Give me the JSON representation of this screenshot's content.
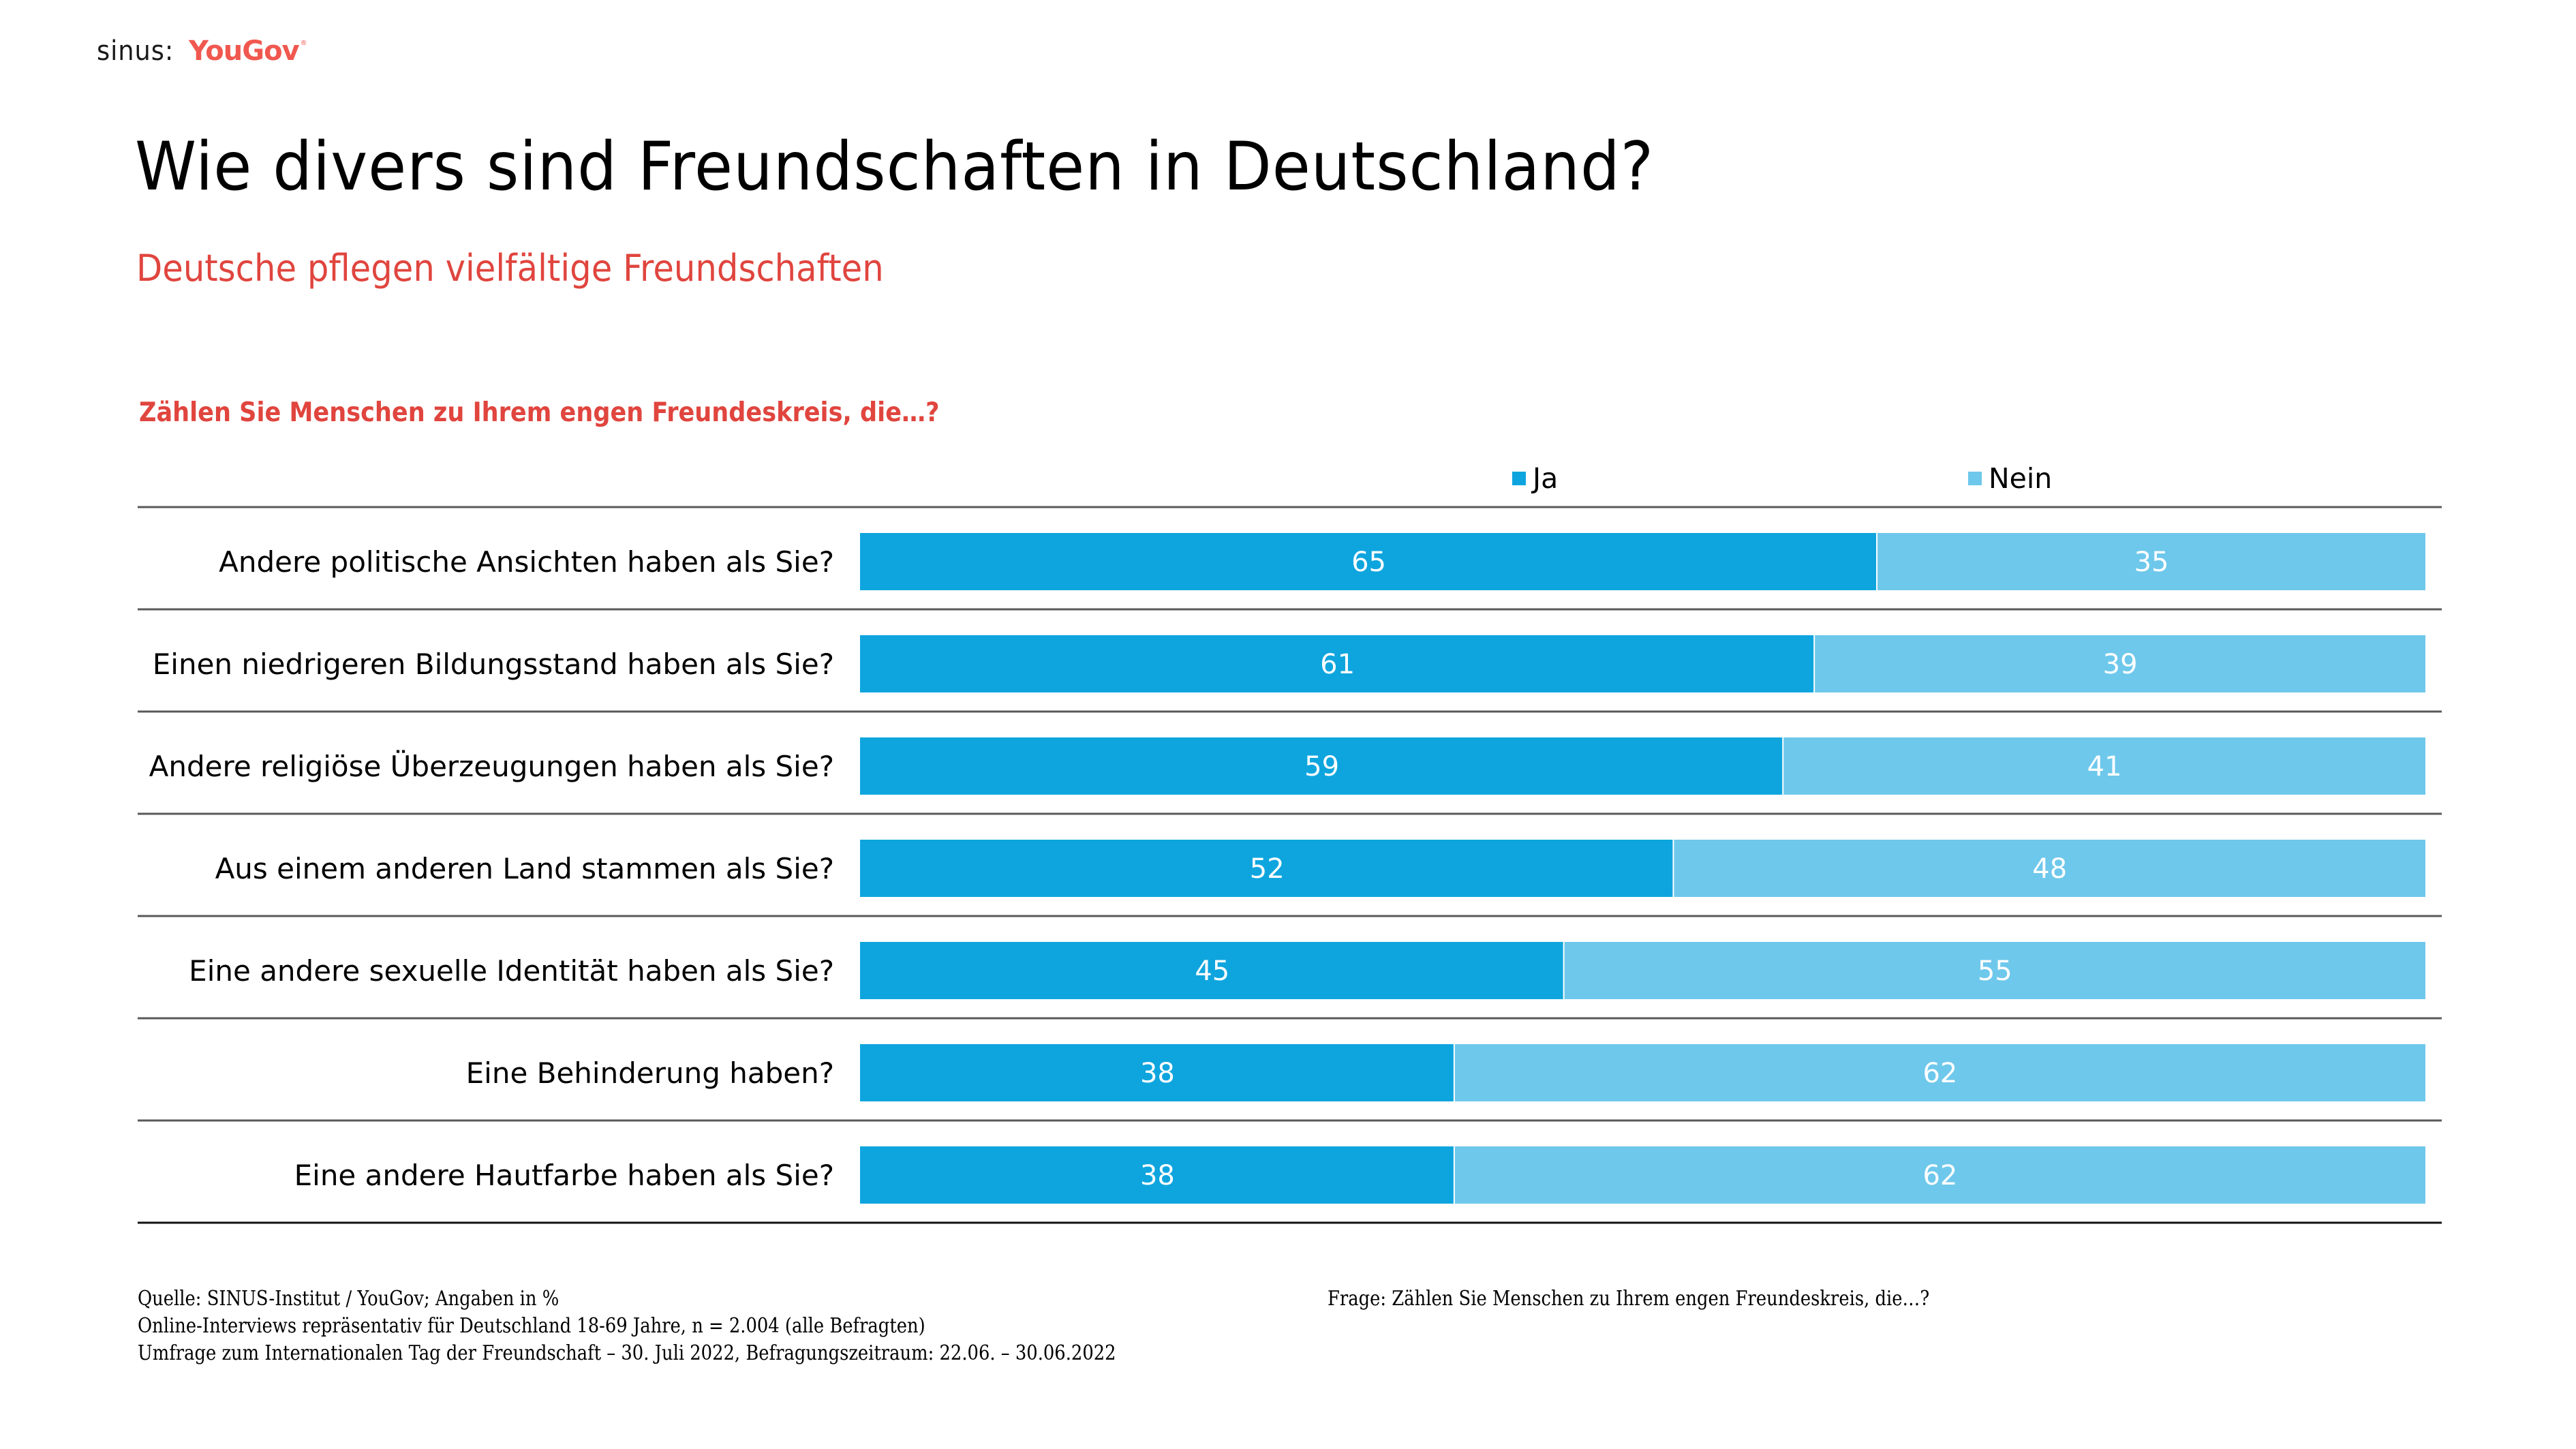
{
  "logo": {
    "sinus": "sinus:",
    "yougov": "YouGov",
    "registered": "®"
  },
  "header": {
    "title": "Wie divers sind Freundschaften in Deutschland?",
    "subtitle": "Deutsche pflegen vielfältige Freundschaften"
  },
  "colors": {
    "ja": "#0EA5DE",
    "nein": "#6EC8EB",
    "accent_red": "#E0453E",
    "gridline": "#595959"
  },
  "chart_data": {
    "type": "bar",
    "orientation": "horizontal",
    "stacked": true,
    "percent_stacked": true,
    "title": "Zählen Sie Menschen zu Ihrem engen Freundeskreis, die…?",
    "xlabel": "",
    "ylabel": "",
    "xlim": [
      0,
      100
    ],
    "unit": "%",
    "legend_position": "top",
    "grid": false,
    "categories": [
      "Andere politische Ansichten haben als Sie?",
      "Einen niedrigeren Bildungsstand haben als Sie?",
      "Andere religiöse Überzeugungen haben als Sie?",
      "Aus einem anderen Land stammen als Sie?",
      "Eine andere sexuelle Identität haben als Sie?",
      "Eine Behinderung haben?",
      "Eine andere Hautfarbe haben als Sie?"
    ],
    "series": [
      {
        "name": "Ja",
        "color": "#0EA5DE",
        "values": [
          65,
          61,
          59,
          52,
          45,
          38,
          38
        ]
      },
      {
        "name": "Nein",
        "color": "#6EC8EB",
        "values": [
          35,
          39,
          41,
          48,
          55,
          62,
          62
        ]
      }
    ]
  },
  "footer": {
    "left_lines": [
      "Quelle: SINUS-Institut / YouGov; Angaben in %",
      "Online-Interviews repräsentativ für Deutschland 18-69 Jahre, n = 2.004 (alle Befragten)",
      "Umfrage zum Internationalen Tag der Freundschaft – 30. Juli 2022, Befragungszeitraum: 22.06. – 30.06.2022"
    ],
    "right": "Frage: Zählen Sie Menschen zu Ihrem engen Freundeskreis, die…?"
  }
}
